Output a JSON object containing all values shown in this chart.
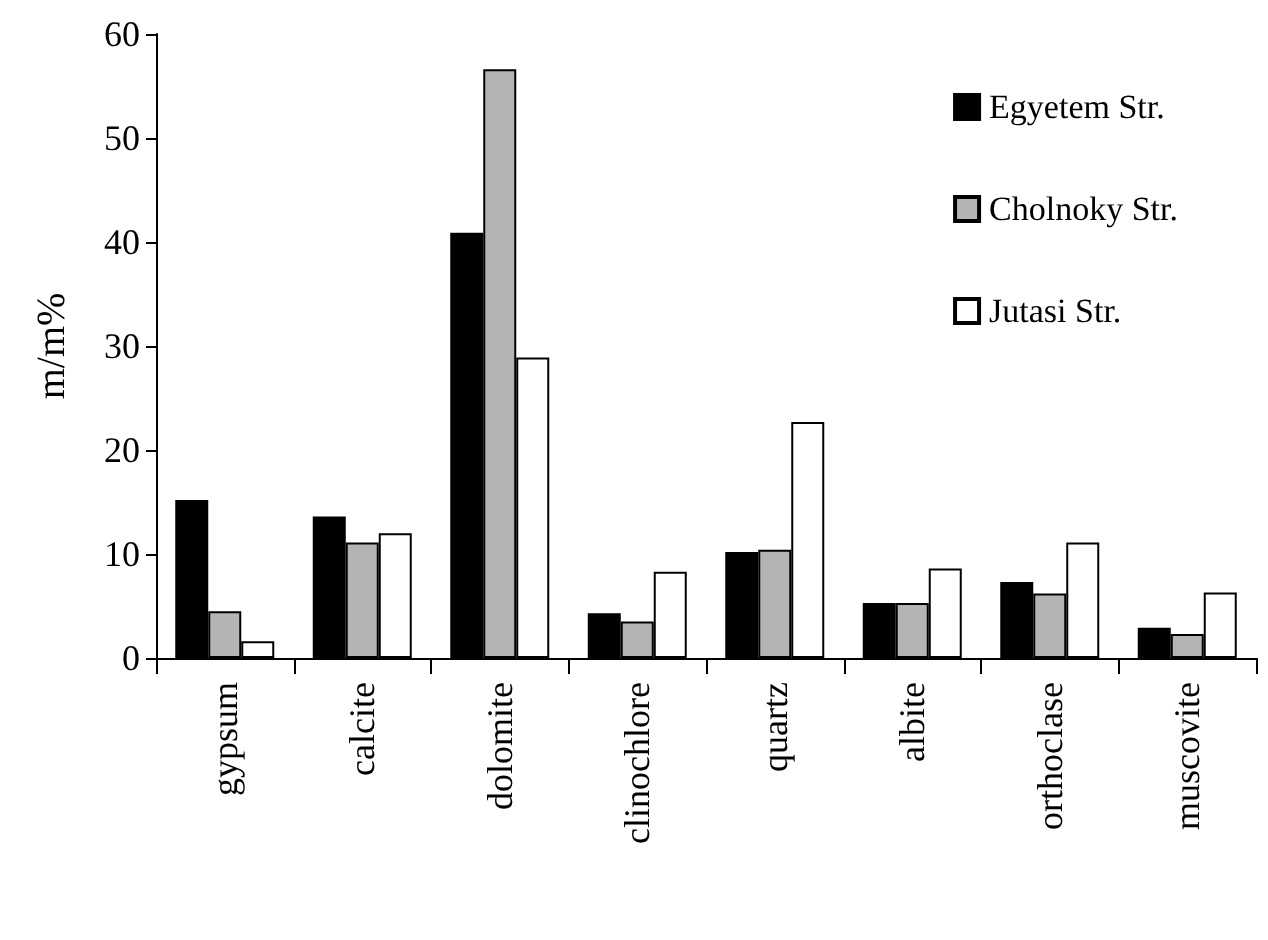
{
  "chart_data": {
    "type": "bar",
    "ylabel": "m/m%",
    "categories": [
      "gypsum",
      "calcite",
      "dolomite",
      "clinochlore",
      "quartz",
      "albite",
      "orthoclase",
      "muscovite"
    ],
    "series": [
      {
        "name": "Egyetem Str.",
        "color": "#000000",
        "values": [
          15.2,
          13.6,
          40.9,
          4.3,
          10.2,
          5.3,
          7.3,
          2.9
        ]
      },
      {
        "name": "Cholnoky Str.",
        "color": "#b4b4b4",
        "values": [
          4.5,
          11.1,
          56.6,
          3.5,
          10.4,
          5.3,
          6.2,
          2.3
        ]
      },
      {
        "name": "Jutasi Str.",
        "color": "#ffffff",
        "values": [
          1.6,
          12.0,
          28.9,
          8.3,
          22.7,
          8.6,
          11.1,
          6.3
        ]
      }
    ],
    "ylim": [
      0,
      60
    ],
    "yticks": [
      0,
      10,
      20,
      30,
      40,
      50,
      60
    ],
    "grid": false,
    "legend": "top right"
  }
}
